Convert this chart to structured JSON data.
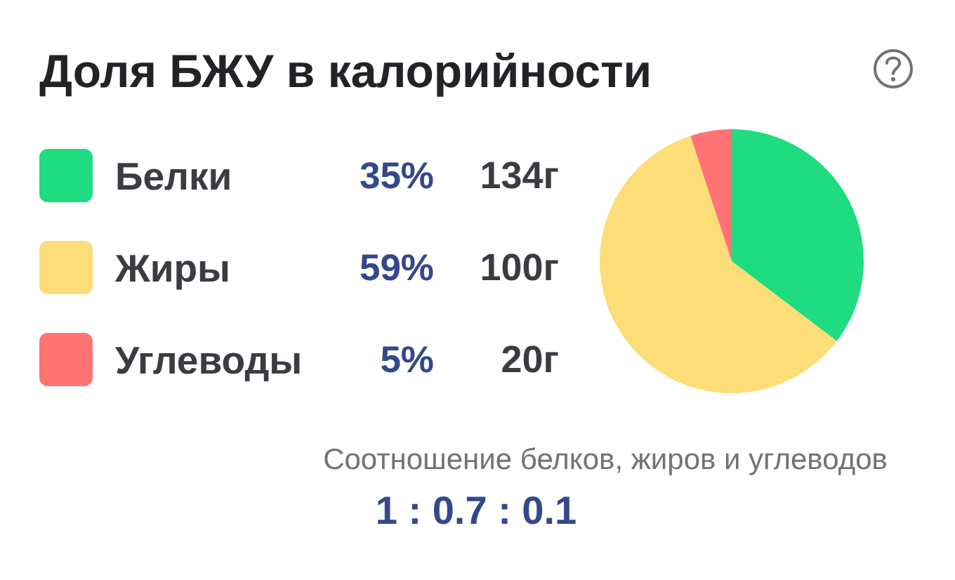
{
  "chart_data": {
    "type": "pie",
    "title": "Доля БЖУ в калорийности",
    "categories": [
      "Белки",
      "Жиры",
      "Углеводы"
    ],
    "values": [
      35,
      59,
      5
    ],
    "colors": [
      "#1edc7f",
      "#fddd78",
      "#fe7474"
    ],
    "value_labels": [
      "35%",
      "59%",
      "5%"
    ],
    "legend": "left",
    "annotations": [
      {
        "text": "134г",
        "x": "Белки"
      },
      {
        "text": "100г",
        "x": "Жиры"
      },
      {
        "text": "20г",
        "x": "Углеводы"
      },
      "Соотношение белков, жиров и углеводов",
      "1 : 0.7 : 0.1"
    ]
  }
}
